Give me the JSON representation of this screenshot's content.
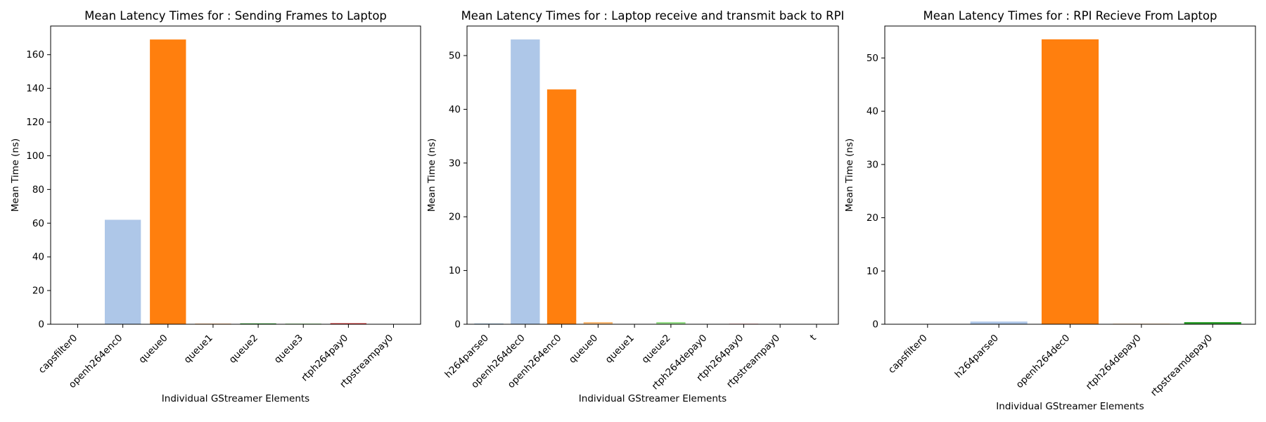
{
  "chart_data": [
    {
      "type": "bar",
      "title": "Mean Latency Times for : Sending Frames to Laptop",
      "xlabel": "Individual GStreamer Elements",
      "ylabel": "Mean Time (ns)",
      "ylim": [
        0,
        177
      ],
      "yticks": [
        0,
        20,
        40,
        60,
        80,
        100,
        120,
        140,
        160
      ],
      "grid": false,
      "categories": [
        "capsfilter0",
        "openh264enc0",
        "queue0",
        "queue1",
        "queue2",
        "queue3",
        "rtph264pay0",
        "rtpstreampay0"
      ],
      "values": [
        0.1,
        62,
        169,
        0.4,
        0.5,
        0.4,
        0.6,
        0.1
      ],
      "colors": [
        "#1f77b4",
        "#aec7e8",
        "#ff7f0e",
        "#ffbb78",
        "#2ca02c",
        "#98df8a",
        "#d62728",
        "#ff9896"
      ]
    },
    {
      "type": "bar",
      "title": "Mean Latency Times for : Laptop receive and transmit back to RPI",
      "xlabel": "Individual GStreamer Elements",
      "ylabel": "Mean Time (ns)",
      "ylim": [
        0,
        55.5
      ],
      "yticks": [
        0,
        10,
        20,
        30,
        40,
        50
      ],
      "grid": false,
      "categories": [
        "h264parse0",
        "openh264dec0",
        "openh264enc0",
        "queue0",
        "queue1",
        "queue2",
        "rtph264depay0",
        "rtph264pay0",
        "rtpstreampay0",
        "t"
      ],
      "values": [
        0.1,
        53,
        43.7,
        0.4,
        0.05,
        0.4,
        0.05,
        0.1,
        0.05,
        0.05
      ],
      "colors": [
        "#1f77b4",
        "#aec7e8",
        "#ff7f0e",
        "#ffbb78",
        "#2ca02c",
        "#98df8a",
        "#d62728",
        "#ff9896",
        "#9467bd",
        "#c5b0d5"
      ]
    },
    {
      "type": "bar",
      "title": "Mean Latency Times for : RPI Recieve From Laptop",
      "xlabel": "Individual GStreamer Elements",
      "ylabel": "Mean Time (ns)",
      "ylim": [
        0,
        56
      ],
      "yticks": [
        0,
        10,
        20,
        30,
        40,
        50
      ],
      "grid": false,
      "categories": [
        "capsfilter0",
        "h264parse0",
        "openh264dec0",
        "rtph264depay0",
        "rtpstreamdepay0"
      ],
      "values": [
        0.05,
        0.5,
        53.5,
        0.1,
        0.4
      ],
      "colors": [
        "#1f77b4",
        "#aec7e8",
        "#ff7f0e",
        "#ffbb78",
        "#2ca02c"
      ]
    }
  ]
}
